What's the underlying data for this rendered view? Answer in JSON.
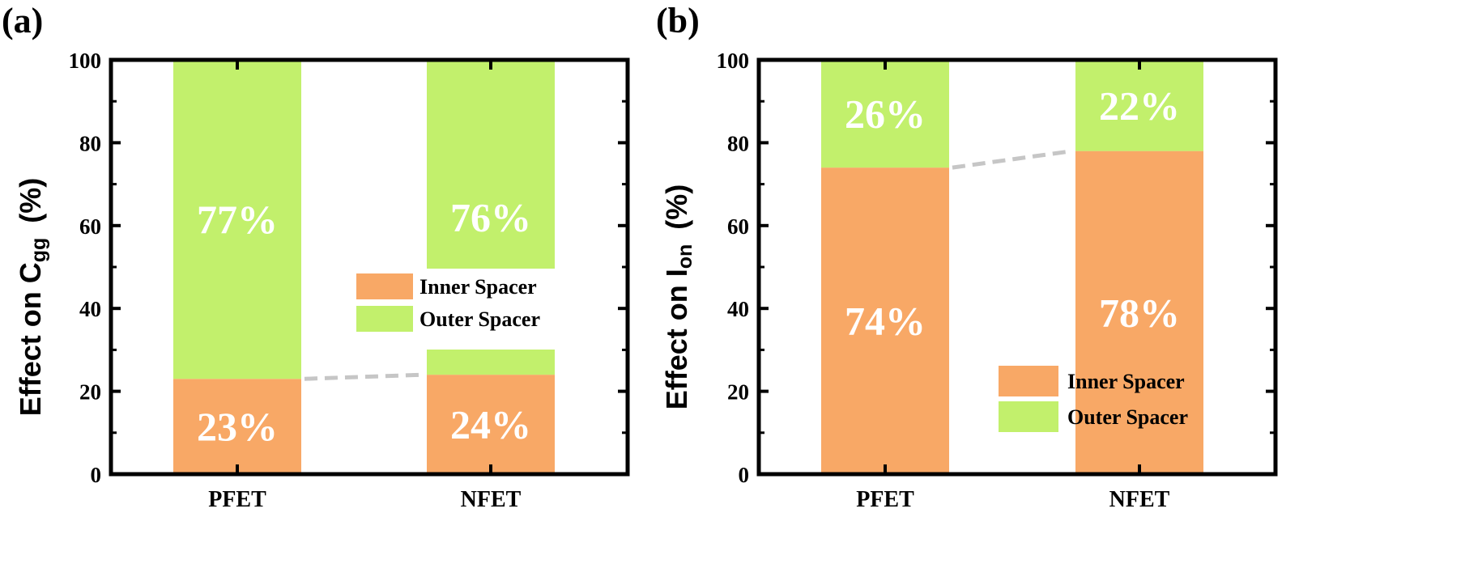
{
  "colors": {
    "inner": "#f8a866",
    "outer": "#c2f06c",
    "connector": "#c6c6c6"
  },
  "chart_data": [
    {
      "type": "bar",
      "stacked": true,
      "panel_label": "(a)",
      "categories": [
        "PFET",
        "NFET"
      ],
      "ylim": [
        0,
        100
      ],
      "yticks": [
        "0",
        "20",
        "40",
        "60",
        "80",
        "100"
      ],
      "ylabel_main": "Effect on C",
      "ylabel_sub": "gg",
      "ylabel_unit": "(%)",
      "legend_position": "center-right",
      "series": [
        {
          "name": "Inner Spacer",
          "values": [
            23,
            24
          ],
          "labels": [
            "23%",
            "24%"
          ]
        },
        {
          "name": "Outer Spacer",
          "values": [
            77,
            76
          ],
          "labels": [
            "77%",
            "76%"
          ]
        }
      ]
    },
    {
      "type": "bar",
      "stacked": true,
      "panel_label": "(b)",
      "categories": [
        "PFET",
        "NFET"
      ],
      "ylim": [
        0,
        100
      ],
      "yticks": [
        "0",
        "20",
        "40",
        "60",
        "80",
        "100"
      ],
      "ylabel_main": "Effect on I",
      "ylabel_sub": "on",
      "ylabel_unit": "(%)",
      "legend_position": "lower-right",
      "series": [
        {
          "name": "Inner Spacer",
          "values": [
            74,
            78
          ],
          "labels": [
            "74%",
            "78%"
          ]
        },
        {
          "name": "Outer Spacer",
          "values": [
            26,
            22
          ],
          "labels": [
            "26%",
            "22%"
          ]
        }
      ]
    }
  ]
}
